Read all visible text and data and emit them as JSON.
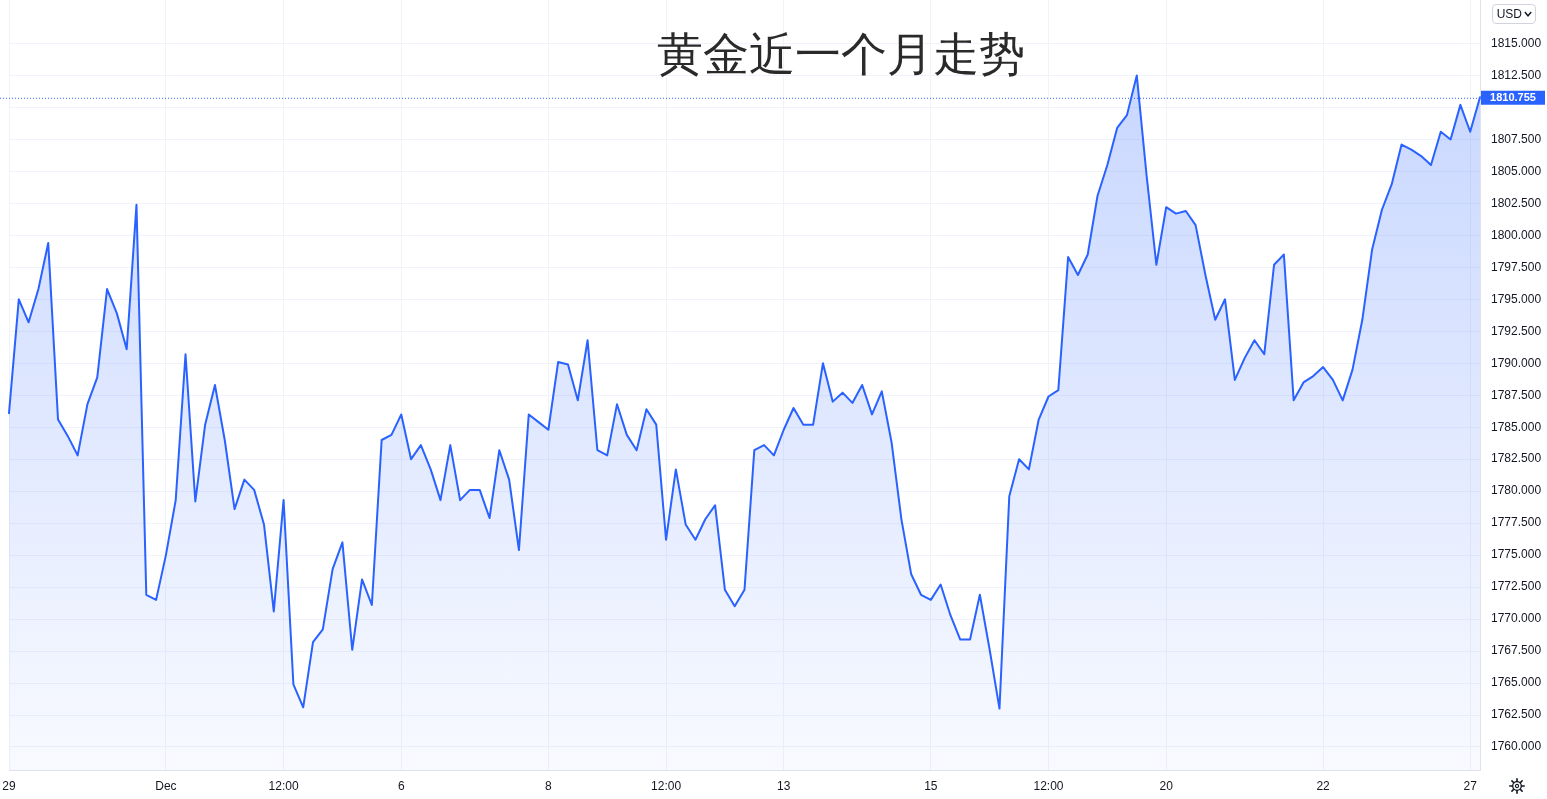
{
  "chart_data": {
    "type": "area",
    "title": "黄金近一个月走势",
    "categories": [
      "29",
      null,
      null,
      null,
      null,
      null,
      null,
      null,
      null,
      null,
      null,
      null,
      null,
      null,
      null,
      null,
      "Dec",
      null,
      null,
      null,
      null,
      null,
      null,
      null,
      null,
      null,
      null,
      null,
      "12:00",
      null,
      null,
      null,
      null,
      null,
      null,
      null,
      null,
      null,
      null,
      null,
      "6",
      null,
      null,
      null,
      null,
      null,
      null,
      null,
      null,
      null,
      null,
      null,
      null,
      null,
      null,
      "8",
      null,
      null,
      null,
      null,
      null,
      null,
      null,
      null,
      null,
      null,
      null,
      "12:00",
      null,
      null,
      null,
      null,
      null,
      null,
      null,
      null,
      null,
      null,
      null,
      "13",
      null,
      null,
      null,
      null,
      null,
      null,
      null,
      null,
      null,
      null,
      null,
      null,
      null,
      null,
      "15",
      null,
      null,
      null,
      null,
      null,
      null,
      null,
      null,
      null,
      null,
      null,
      "12:00",
      null,
      null,
      null,
      null,
      null,
      null,
      null,
      null,
      null,
      null,
      null,
      "20",
      null,
      null,
      null,
      null,
      null,
      null,
      null,
      null,
      null,
      null,
      null,
      null,
      null,
      null,
      null,
      "22",
      null,
      null,
      null,
      null,
      null,
      null,
      null,
      null,
      null,
      null,
      null,
      null,
      null,
      null,
      "27",
      null
    ],
    "values": [
      1786.1,
      1795.0,
      1793.2,
      1795.8,
      1799.4,
      1785.6,
      1784.3,
      1782.8,
      1786.8,
      1788.9,
      1795.8,
      1793.9,
      1791.1,
      1802.4,
      1771.9,
      1771.5,
      1775.0,
      1779.3,
      1790.7,
      1779.2,
      1785.2,
      1788.3,
      1784.0,
      1778.6,
      1780.9,
      1780.1,
      1777.4,
      1770.6,
      1779.3,
      1764.9,
      1763.1,
      1768.2,
      1769.2,
      1773.9,
      1776.0,
      1767.6,
      1773.1,
      1771.1,
      1784.0,
      1784.4,
      1786.0,
      1782.5,
      1783.6,
      1781.7,
      1779.3,
      1783.6,
      1779.3,
      1780.1,
      1780.1,
      1777.9,
      1783.2,
      1780.9,
      1775.4,
      1786.0,
      1785.4,
      1784.8,
      1790.1,
      1789.9,
      1787.1,
      1791.8,
      1783.2,
      1782.8,
      1786.8,
      1784.4,
      1783.2,
      1786.4,
      1785.2,
      1776.2,
      1781.7,
      1777.4,
      1776.2,
      1777.8,
      1778.9,
      1772.3,
      1771.0,
      1772.3,
      1783.2,
      1783.6,
      1782.8,
      1784.8,
      1786.5,
      1785.2,
      1785.2,
      1790.0,
      1787.0,
      1787.7,
      1786.9,
      1788.3,
      1786.0,
      1787.8,
      1783.8,
      1777.8,
      1773.5,
      1771.9,
      1771.5,
      1772.7,
      1770.3,
      1768.4,
      1768.4,
      1771.9,
      1767.6,
      1763.0,
      1779.6,
      1782.5,
      1781.7,
      1785.6,
      1787.4,
      1787.9,
      1798.3,
      1796.9,
      1798.5,
      1803.1,
      1805.5,
      1808.4,
      1809.4,
      1812.5,
      1804.7,
      1797.7,
      1802.2,
      1801.7,
      1801.9,
      1800.8,
      1796.9,
      1793.4,
      1795.0,
      1788.7,
      1790.4,
      1791.8,
      1790.7,
      1797.7,
      1798.5,
      1787.1,
      1788.5,
      1789.0,
      1789.7,
      1788.7,
      1787.1,
      1789.5,
      1793.4,
      1798.9,
      1802.0,
      1804.0,
      1807.1,
      1806.7,
      1806.2,
      1805.5,
      1808.1,
      1807.5,
      1810.2,
      1808.1,
      1810.8
    ],
    "color": "#2962ff",
    "ylim": [
      1758.2,
      1818.4
    ],
    "yticks": [
      {
        "value": 1760,
        "label": "1760.000"
      },
      {
        "value": 1762.5,
        "label": "1762.500"
      },
      {
        "value": 1765,
        "label": "1765.000"
      },
      {
        "value": 1767.5,
        "label": "1767.500"
      },
      {
        "value": 1770,
        "label": "1770.000"
      },
      {
        "value": 1772.5,
        "label": "1772.500"
      },
      {
        "value": 1775,
        "label": "1775.000"
      },
      {
        "value": 1777.5,
        "label": "1777.500"
      },
      {
        "value": 1780,
        "label": "1780.000"
      },
      {
        "value": 1782.5,
        "label": "1782.500"
      },
      {
        "value": 1785,
        "label": "1785.000"
      },
      {
        "value": 1787.5,
        "label": "1787.500"
      },
      {
        "value": 1790,
        "label": "1790.000"
      },
      {
        "value": 1792.5,
        "label": "1792.500"
      },
      {
        "value": 1795,
        "label": "1795.000"
      },
      {
        "value": 1797.5,
        "label": "1797.500"
      },
      {
        "value": 1800,
        "label": "1800.000"
      },
      {
        "value": 1802.5,
        "label": "1802.500"
      },
      {
        "value": 1805,
        "label": "1805.000"
      },
      {
        "value": 1807.5,
        "label": "1807.500"
      },
      {
        "value": 1810,
        "label": null
      },
      {
        "value": 1812.5,
        "label": "1812.500"
      },
      {
        "value": 1815,
        "label": "1815.000"
      }
    ],
    "grid": true,
    "ref_lines": [
      {
        "axis": "y",
        "value": 1810.755,
        "label": "1810.755",
        "color": "#2962ff",
        "line_style": "dotted"
      }
    ],
    "annotations": [
      "USD"
    ]
  }
}
